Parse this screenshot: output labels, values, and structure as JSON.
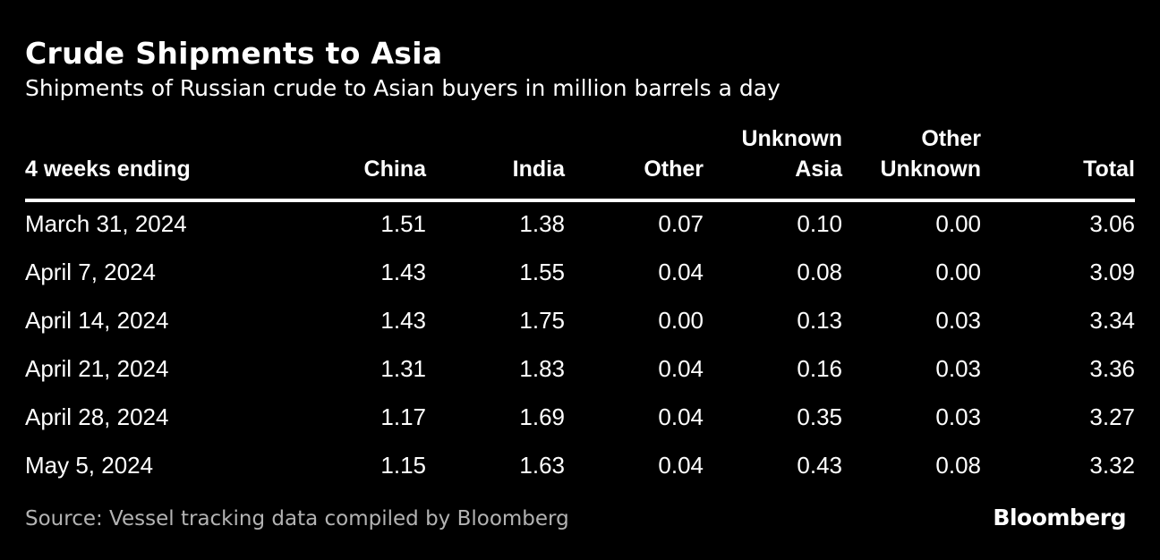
{
  "chart_data": {
    "type": "table",
    "title": "Crude Shipments to Asia",
    "subtitle": "Shipments of Russian crude to Asian buyers in million barrels a day",
    "columns": [
      [
        "4 weeks ending"
      ],
      [
        "China"
      ],
      [
        "India"
      ],
      [
        "Other"
      ],
      [
        "Unknown",
        "Asia"
      ],
      [
        "Other",
        "Unknown"
      ],
      [
        "Total"
      ]
    ],
    "rows": [
      [
        "March 31, 2024",
        "1.51",
        "1.38",
        "0.07",
        "0.10",
        "0.00",
        "3.06"
      ],
      [
        "April 7, 2024",
        "1.43",
        "1.55",
        "0.04",
        "0.08",
        "0.00",
        "3.09"
      ],
      [
        "April 14, 2024",
        "1.43",
        "1.75",
        "0.00",
        "0.13",
        "0.03",
        "3.34"
      ],
      [
        "April 21, 2024",
        "1.31",
        "1.83",
        "0.04",
        "0.16",
        "0.03",
        "3.36"
      ],
      [
        "April 28, 2024",
        "1.17",
        "1.69",
        "0.04",
        "0.35",
        "0.03",
        "3.27"
      ],
      [
        "May 5, 2024",
        "1.15",
        "1.63",
        "0.04",
        "0.43",
        "0.08",
        "3.32"
      ]
    ],
    "units": "million barrels a day"
  },
  "footer": {
    "source": "Source: Vessel tracking data compiled by Bloomberg",
    "logo_text": "Bloomberg"
  },
  "colors": {
    "background": "#000000",
    "text": "#ffffff",
    "source_text": "#b3b3b3"
  }
}
